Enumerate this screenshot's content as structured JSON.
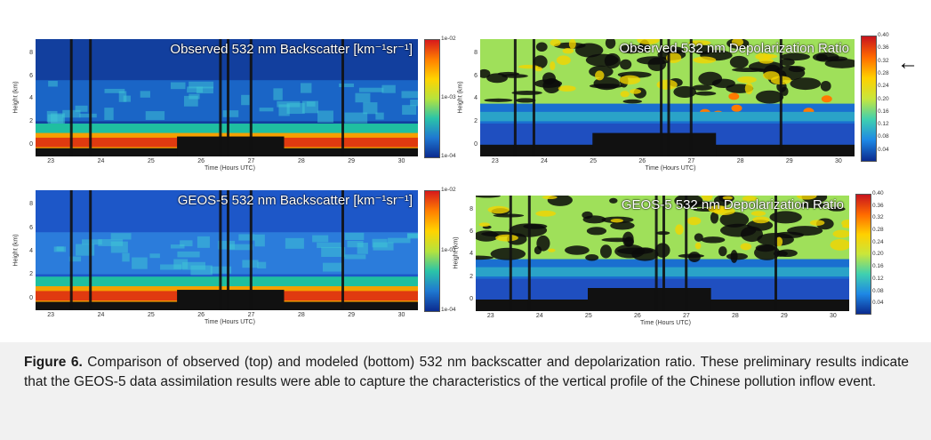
{
  "figure": {
    "panels": [
      {
        "id": "obs_backscatter",
        "title": "Observed 532 nm Backscatter [km⁻¹sr⁻¹]",
        "ylabel": "Height (km)",
        "xlabel": "Time (Hours UTC)",
        "yticks": [
          "8",
          "6",
          "4",
          "2",
          "0"
        ],
        "xticks": [
          "23",
          "24",
          "25",
          "26",
          "27",
          "28",
          "29",
          "30"
        ],
        "colorbar": {
          "scale": "log",
          "ticks": [
            "1e-02",
            "1e-03",
            "1e-04"
          ],
          "colors": [
            "#d7191c",
            "#ff7f00",
            "#ffd400",
            "#b6e33d",
            "#2bc4a8",
            "#1f78d1",
            "#0b2b8f"
          ]
        }
      },
      {
        "id": "obs_depol",
        "title": "Observed 532 nm Depolarization Ratio",
        "ylabel": "Height (km)",
        "xlabel": "Time (Hours UTC)",
        "yticks": [
          "8",
          "6",
          "4",
          "2",
          "0"
        ],
        "xticks": [
          "23",
          "24",
          "25",
          "26",
          "27",
          "28",
          "29",
          "30"
        ],
        "colorbar": {
          "scale": "linear",
          "ticks": [
            "0.40",
            "0.36",
            "0.32",
            "0.28",
            "0.24",
            "0.20",
            "0.16",
            "0.12",
            "0.08",
            "0.04"
          ],
          "colors": [
            "#c8141e",
            "#ff6a00",
            "#ffd000",
            "#c8e63c",
            "#3fd0b0",
            "#1e88e5",
            "#0b2b8f"
          ]
        }
      },
      {
        "id": "model_backscatter",
        "title": "GEOS-5 532 nm Backscatter [km⁻¹sr⁻¹]",
        "ylabel": "Height (km)",
        "xlabel": "Time (Hours UTC)",
        "yticks": [
          "8",
          "6",
          "4",
          "2",
          "0"
        ],
        "xticks": [
          "23",
          "24",
          "25",
          "26",
          "27",
          "28",
          "29",
          "30"
        ],
        "colorbar": {
          "scale": "log",
          "ticks": [
            "1e-02",
            "1e-03",
            "1e-04"
          ],
          "colors": [
            "#d7191c",
            "#ff7f00",
            "#ffd400",
            "#b6e33d",
            "#2bc4a8",
            "#1f78d1",
            "#0b2b8f"
          ]
        }
      },
      {
        "id": "model_depol",
        "title": "GEOS-5 532 nm Depolarization Ratio",
        "ylabel": "Height (km)",
        "xlabel": "Time (Hours UTC)",
        "yticks": [
          "8",
          "6",
          "4",
          "2",
          "0"
        ],
        "xticks": [
          "23",
          "24",
          "25",
          "26",
          "27",
          "28",
          "29",
          "30"
        ],
        "colorbar": {
          "scale": "linear",
          "ticks": [
            "0.40",
            "0.36",
            "0.32",
            "0.28",
            "0.24",
            "0.20",
            "0.16",
            "0.12",
            "0.08",
            "0.04"
          ],
          "colors": [
            "#c8141e",
            "#ff6a00",
            "#ffd000",
            "#c8e63c",
            "#3fd0b0",
            "#1e88e5",
            "#0b2b8f"
          ]
        }
      }
    ],
    "arrow_symbol": "←"
  },
  "caption": {
    "label": "Figure 6.",
    "text": " Comparison of observed (top) and modeled (bottom) 532 nm backscatter and depolarization ratio. These preliminary results indicate that the GEOS-5 data assimilation results were able to capture the characteristics of the vertical profile of the Chinese pollution inflow event."
  }
}
